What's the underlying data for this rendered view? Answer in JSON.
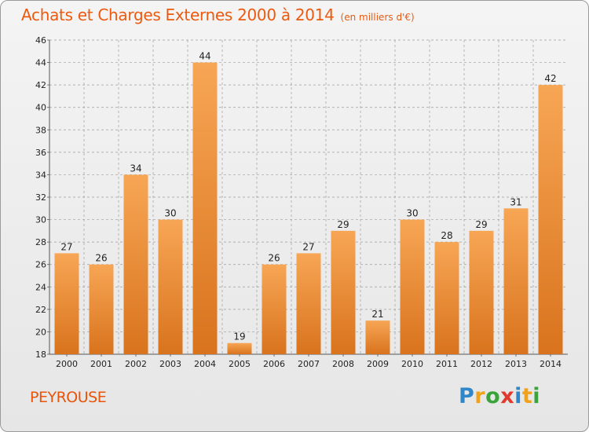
{
  "header": {
    "title": "Achats et Charges Externes 2000 à 2014",
    "unit": "(en milliers d'€)"
  },
  "location": "PEYROUSE",
  "logo": {
    "letters": [
      "P",
      "r",
      "o",
      "x",
      "i",
      "t",
      "i"
    ],
    "colors": [
      "#2f86c8",
      "#f0a21b",
      "#3aa33a",
      "#e03a2e",
      "#2f86c8",
      "#f0a21b",
      "#3aa33a"
    ]
  },
  "colors": {
    "bar_light": "#f7a655",
    "bar_dark": "#d9731d",
    "text": "#222222",
    "grid": "#9d9d9d",
    "title": "#ec5a0f"
  },
  "chart_data": {
    "type": "bar",
    "categories": [
      "2000",
      "2001",
      "2002",
      "2003",
      "2004",
      "2005",
      "2006",
      "2007",
      "2008",
      "2009",
      "2010",
      "2011",
      "2012",
      "2013",
      "2014"
    ],
    "values": [
      27,
      26,
      34,
      30,
      44,
      19,
      26,
      27,
      29,
      21,
      30,
      28,
      29,
      31,
      42
    ],
    "ylim": [
      18,
      46
    ],
    "yticks": [
      18,
      20,
      22,
      24,
      26,
      28,
      30,
      32,
      34,
      36,
      38,
      40,
      42,
      44,
      46
    ],
    "grid": true,
    "data_labels": true
  }
}
